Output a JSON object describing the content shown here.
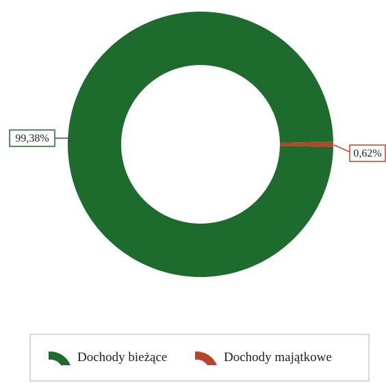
{
  "chart_data": {
    "type": "pie",
    "variant": "donut",
    "title": "",
    "categories": [
      "Dochody bieżące",
      "Dochody majątkowe"
    ],
    "values": [
      99.38,
      0.62
    ],
    "data_labels": [
      "99,38%",
      "0,62%"
    ],
    "colors": [
      "#1e6b2e",
      "#b5462a"
    ],
    "legend_position": "bottom"
  }
}
